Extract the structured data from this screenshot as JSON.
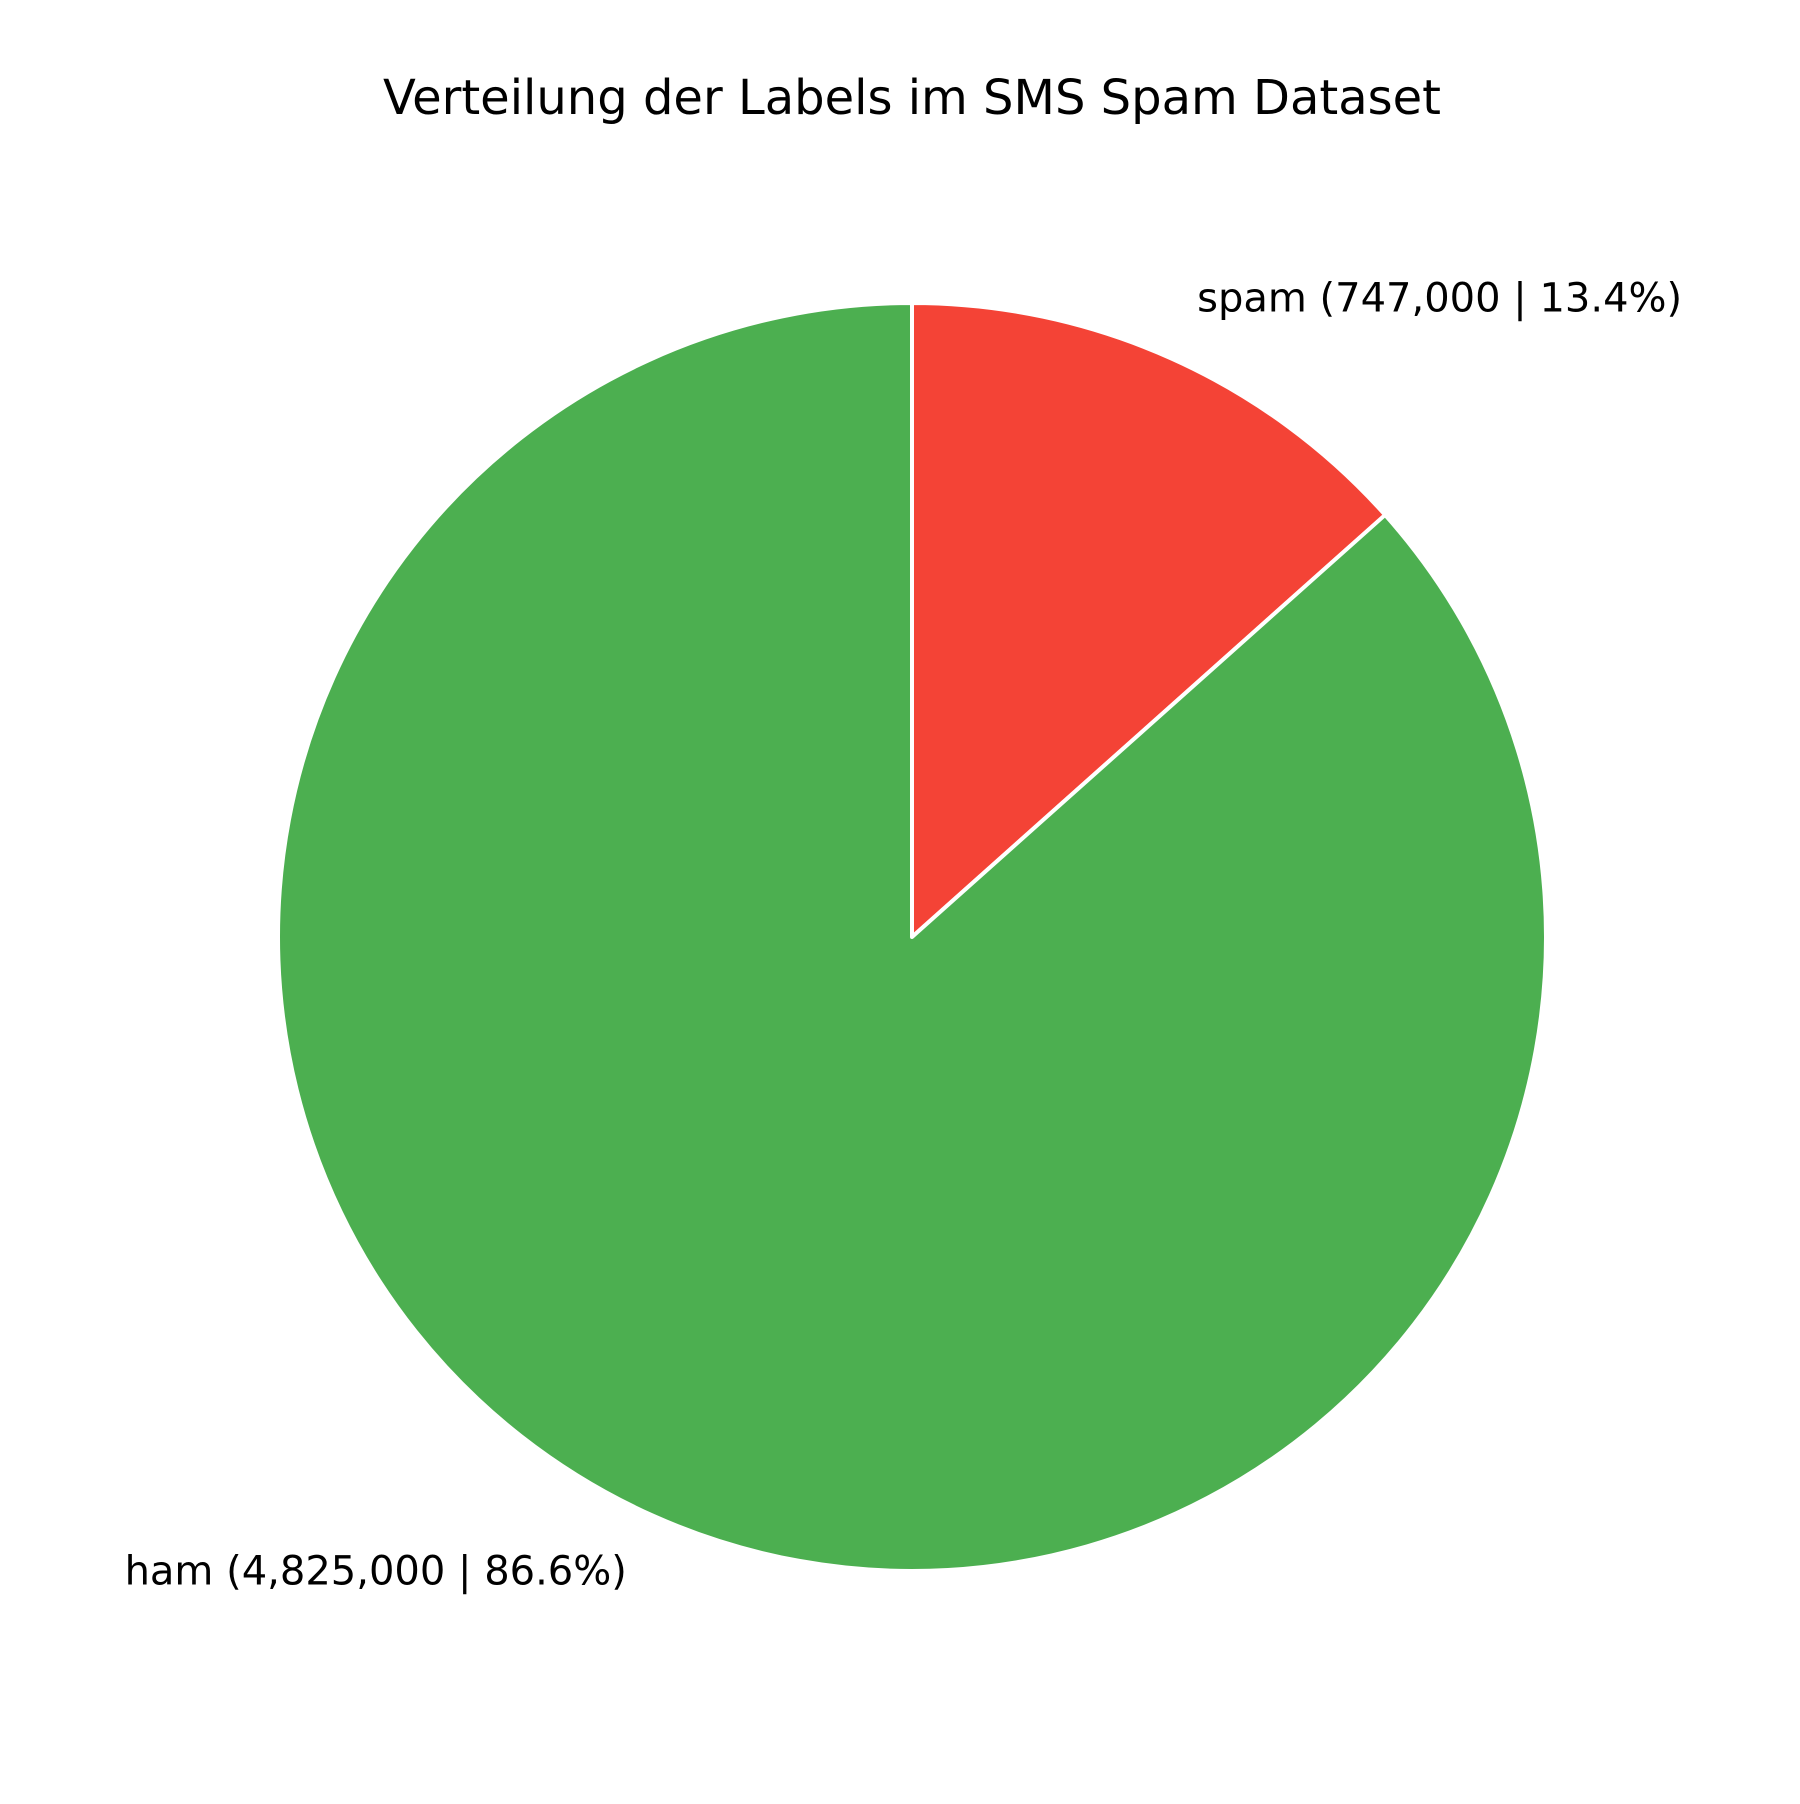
{
  "chart_data": {
    "type": "pie",
    "title": "Verteilung der Labels im SMS Spam Dataset",
    "start_angle_deg": 90,
    "direction": "clockwise",
    "slices": [
      {
        "label": "spam (747,000 | 13.4%)",
        "category": "spam",
        "value": 747000,
        "percent": 13.4,
        "color": "#f44336"
      },
      {
        "label": "ham (4,825,000 | 86.6%)",
        "category": "ham",
        "value": 4825000,
        "percent": 86.6,
        "color": "#4caf50"
      }
    ]
  }
}
